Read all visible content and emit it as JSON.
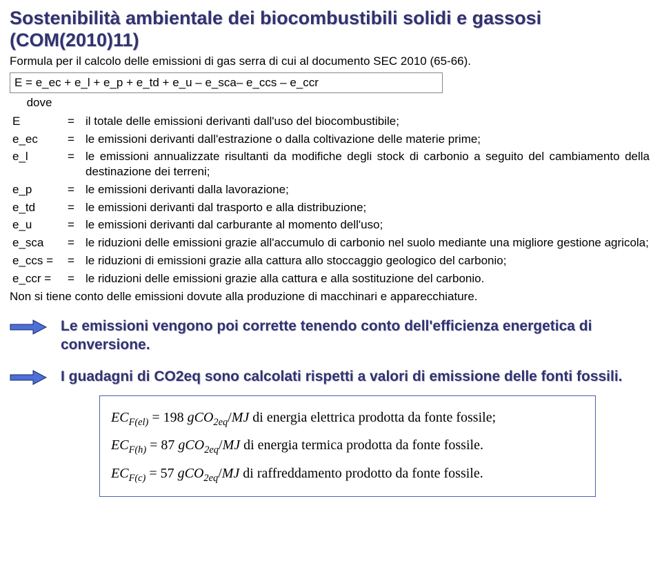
{
  "title": "Sostenibilità ambientale dei biocombustibili solidi e gassosi (COM(2010)11)",
  "subtitle": "Formula per il calcolo delle emissioni di gas serra di cui al documento SEC 2010 (65-66).",
  "formula": "E = e_ec + e_l + e_p + e_td + e_u – e_sca– e_ccs – e_ccr",
  "dove": "dove",
  "definitions": [
    {
      "sym": "E",
      "eq": "=",
      "def": "il totale delle emissioni derivanti dall'uso del biocombustibile;"
    },
    {
      "sym": "e_ec",
      "eq": "=",
      "def": "le emissioni derivanti dall'estrazione o dalla coltivazione delle materie prime;"
    },
    {
      "sym": "e_l",
      "eq": "=",
      "def": "le emissioni annualizzate risultanti da modifiche degli stock di carbonio a seguito del cambiamento della destinazione dei terreni;"
    },
    {
      "sym": "e_p",
      "eq": "=",
      "def": "le emissioni derivanti dalla lavorazione;"
    },
    {
      "sym": "e_td",
      "eq": "=",
      "def": "le emissioni derivanti dal trasporto e alla distribuzione;"
    },
    {
      "sym": "e_u",
      "eq": "=",
      "def": "le emissioni derivanti dal carburante al momento dell'uso;"
    },
    {
      "sym": "e_sca",
      "eq": "=",
      "def": "le riduzioni delle emissioni grazie all'accumulo di carbonio nel suolo mediante una migliore gestione agricola;"
    },
    {
      "sym": "e_ccs =",
      "eq": "=",
      "def": "le riduzioni di emissioni grazie alla cattura allo stoccaggio geologico del carbonio;"
    },
    {
      "sym": "e_ccr =",
      "eq": "=",
      "def": "le riduzioni delle emissioni grazie alla cattura e alla sostituzione del carbonio."
    }
  ],
  "non_si": "Non si tiene conto delle emissioni dovute alla produzione di macchinari e apparecchiature.",
  "bullets": [
    "Le emissioni  vengono poi corrette tenendo conto dell'efficienza energetica di conversione.",
    "I guadagni di CO2eq sono calcolati rispetti a valori di emissione delle fonti fossili."
  ],
  "equations": {
    "line1": {
      "lhs_sub": "F(el)",
      "val": "198",
      "rhs": "di energia elettrica prodotta da fonte fossile;"
    },
    "line2": {
      "lhs_sub": "F(h)",
      "val": "87",
      "rhs": "di energia termica prodotta da fonte fossile."
    },
    "line3": {
      "lhs_sub": "F(c)",
      "val": "57",
      "rhs": "di raffreddamento prodotto da fonte fossile."
    }
  },
  "colors": {
    "title": "#31326f",
    "shadow": "#c7c7d9",
    "arrow_fill": "#4d6fd6",
    "arrow_stroke": "#1a2a66",
    "eq_box_border": "#4b5fb0"
  }
}
